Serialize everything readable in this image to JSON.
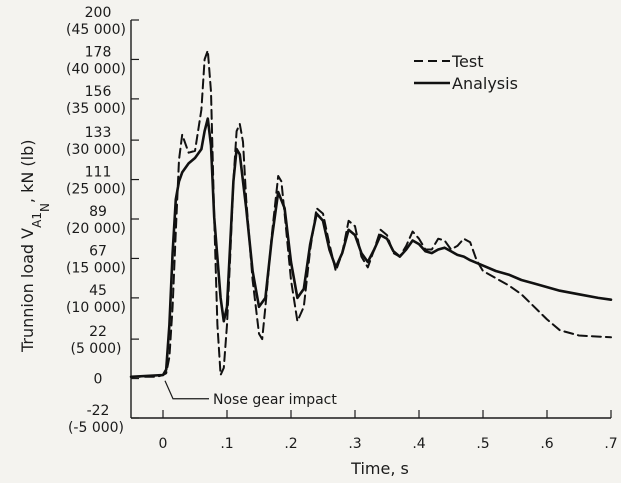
{
  "chart_data": {
    "type": "line",
    "xlabel": "Time, s",
    "ylabel": "Trunnion load V",
    "ylabel_sub": "A1",
    "ylabel_subsub": "N",
    "ylabel_units": ", kN (lb)",
    "xlim": [
      -0.05,
      0.7
    ],
    "ylim": [
      -22,
      200
    ],
    "x_ticks": [
      {
        "value": 0,
        "label": "0"
      },
      {
        "value": 0.1,
        "label": ".1"
      },
      {
        "value": 0.2,
        "label": ".2"
      },
      {
        "value": 0.3,
        "label": ".3"
      },
      {
        "value": 0.4,
        "label": ".4"
      },
      {
        "value": 0.5,
        "label": ".5"
      },
      {
        "value": 0.6,
        "label": ".6"
      },
      {
        "value": 0.7,
        "label": ".7"
      }
    ],
    "y_ticks": [
      {
        "value": 200,
        "kn": "200",
        "lb": "(45 000)"
      },
      {
        "value": 178,
        "kn": "178",
        "lb": "(40 000)"
      },
      {
        "value": 156,
        "kn": "156",
        "lb": "(35 000)"
      },
      {
        "value": 133,
        "kn": "133",
        "lb": "(30 000)"
      },
      {
        "value": 111,
        "kn": "111",
        "lb": "(25 000)"
      },
      {
        "value": 89,
        "kn": "89",
        "lb": "(20 000)"
      },
      {
        "value": 67,
        "kn": "67",
        "lb": "(15 000)"
      },
      {
        "value": 45,
        "kn": "45",
        "lb": "(10 000)"
      },
      {
        "value": 22,
        "kn": "22",
        "lb": "(5 000)"
      },
      {
        "value": 0,
        "kn": "0",
        "lb": ""
      },
      {
        "value": -22,
        "kn": "-22",
        "lb": "(-5 000)"
      }
    ],
    "legend": {
      "position": "top-right"
    },
    "series": [
      {
        "name": "Test",
        "style": "dashed",
        "points": [
          [
            -0.05,
            1
          ],
          [
            -0.01,
            1
          ],
          [
            0.0,
            2
          ],
          [
            0.005,
            3
          ],
          [
            0.01,
            12
          ],
          [
            0.015,
            40
          ],
          [
            0.02,
            82
          ],
          [
            0.025,
            122
          ],
          [
            0.03,
            136
          ],
          [
            0.04,
            126
          ],
          [
            0.05,
            127
          ],
          [
            0.06,
            150
          ],
          [
            0.065,
            178
          ],
          [
            0.07,
            183
          ],
          [
            0.075,
            160
          ],
          [
            0.08,
            90
          ],
          [
            0.085,
            30
          ],
          [
            0.09,
            2
          ],
          [
            0.095,
            6
          ],
          [
            0.1,
            30
          ],
          [
            0.105,
            68
          ],
          [
            0.11,
            110
          ],
          [
            0.115,
            138
          ],
          [
            0.12,
            142
          ],
          [
            0.125,
            132
          ],
          [
            0.13,
            100
          ],
          [
            0.14,
            55
          ],
          [
            0.15,
            25
          ],
          [
            0.155,
            22
          ],
          [
            0.16,
            40
          ],
          [
            0.17,
            80
          ],
          [
            0.18,
            113
          ],
          [
            0.185,
            110
          ],
          [
            0.19,
            92
          ],
          [
            0.2,
            55
          ],
          [
            0.21,
            32
          ],
          [
            0.22,
            40
          ],
          [
            0.23,
            72
          ],
          [
            0.24,
            95
          ],
          [
            0.25,
            92
          ],
          [
            0.26,
            75
          ],
          [
            0.27,
            60
          ],
          [
            0.28,
            70
          ],
          [
            0.29,
            88
          ],
          [
            0.3,
            85
          ],
          [
            0.31,
            68
          ],
          [
            0.32,
            62
          ],
          [
            0.33,
            72
          ],
          [
            0.34,
            83
          ],
          [
            0.35,
            80
          ],
          [
            0.36,
            70
          ],
          [
            0.37,
            68
          ],
          [
            0.38,
            74
          ],
          [
            0.39,
            82
          ],
          [
            0.4,
            78
          ],
          [
            0.41,
            72
          ],
          [
            0.42,
            72
          ],
          [
            0.43,
            78
          ],
          [
            0.44,
            77
          ],
          [
            0.45,
            72
          ],
          [
            0.46,
            74
          ],
          [
            0.47,
            78
          ],
          [
            0.48,
            76
          ],
          [
            0.49,
            66
          ],
          [
            0.5,
            60
          ],
          [
            0.52,
            56
          ],
          [
            0.54,
            52
          ],
          [
            0.56,
            47
          ],
          [
            0.58,
            40
          ],
          [
            0.6,
            33
          ],
          [
            0.62,
            27
          ],
          [
            0.65,
            24
          ],
          [
            0.7,
            23
          ]
        ]
      },
      {
        "name": "Analysis",
        "style": "solid",
        "points": [
          [
            -0.05,
            1
          ],
          [
            0.0,
            2
          ],
          [
            0.005,
            5
          ],
          [
            0.01,
            30
          ],
          [
            0.015,
            70
          ],
          [
            0.02,
            100
          ],
          [
            0.025,
            110
          ],
          [
            0.03,
            115
          ],
          [
            0.04,
            120
          ],
          [
            0.05,
            123
          ],
          [
            0.06,
            128
          ],
          [
            0.065,
            138
          ],
          [
            0.07,
            145
          ],
          [
            0.075,
            130
          ],
          [
            0.08,
            90
          ],
          [
            0.09,
            45
          ],
          [
            0.095,
            32
          ],
          [
            0.1,
            40
          ],
          [
            0.105,
            75
          ],
          [
            0.11,
            110
          ],
          [
            0.115,
            128
          ],
          [
            0.12,
            125
          ],
          [
            0.13,
            95
          ],
          [
            0.14,
            60
          ],
          [
            0.15,
            40
          ],
          [
            0.16,
            45
          ],
          [
            0.17,
            78
          ],
          [
            0.18,
            104
          ],
          [
            0.19,
            95
          ],
          [
            0.2,
            65
          ],
          [
            0.21,
            45
          ],
          [
            0.22,
            50
          ],
          [
            0.23,
            75
          ],
          [
            0.24,
            92
          ],
          [
            0.25,
            88
          ],
          [
            0.26,
            72
          ],
          [
            0.27,
            62
          ],
          [
            0.28,
            70
          ],
          [
            0.29,
            83
          ],
          [
            0.3,
            80
          ],
          [
            0.31,
            70
          ],
          [
            0.32,
            65
          ],
          [
            0.33,
            72
          ],
          [
            0.34,
            80
          ],
          [
            0.35,
            78
          ],
          [
            0.36,
            71
          ],
          [
            0.37,
            68
          ],
          [
            0.38,
            72
          ],
          [
            0.39,
            77
          ],
          [
            0.4,
            75
          ],
          [
            0.41,
            71
          ],
          [
            0.42,
            70
          ],
          [
            0.43,
            72
          ],
          [
            0.44,
            73
          ],
          [
            0.45,
            71
          ],
          [
            0.46,
            69
          ],
          [
            0.47,
            68
          ],
          [
            0.48,
            66
          ],
          [
            0.5,
            63
          ],
          [
            0.52,
            60
          ],
          [
            0.54,
            58
          ],
          [
            0.56,
            55
          ],
          [
            0.58,
            53
          ],
          [
            0.6,
            51
          ],
          [
            0.62,
            49
          ],
          [
            0.65,
            47
          ],
          [
            0.68,
            45
          ],
          [
            0.7,
            44
          ]
        ]
      }
    ],
    "annotations": [
      {
        "text": "Nose gear impact",
        "x": 0.0,
        "y": 1
      }
    ]
  }
}
